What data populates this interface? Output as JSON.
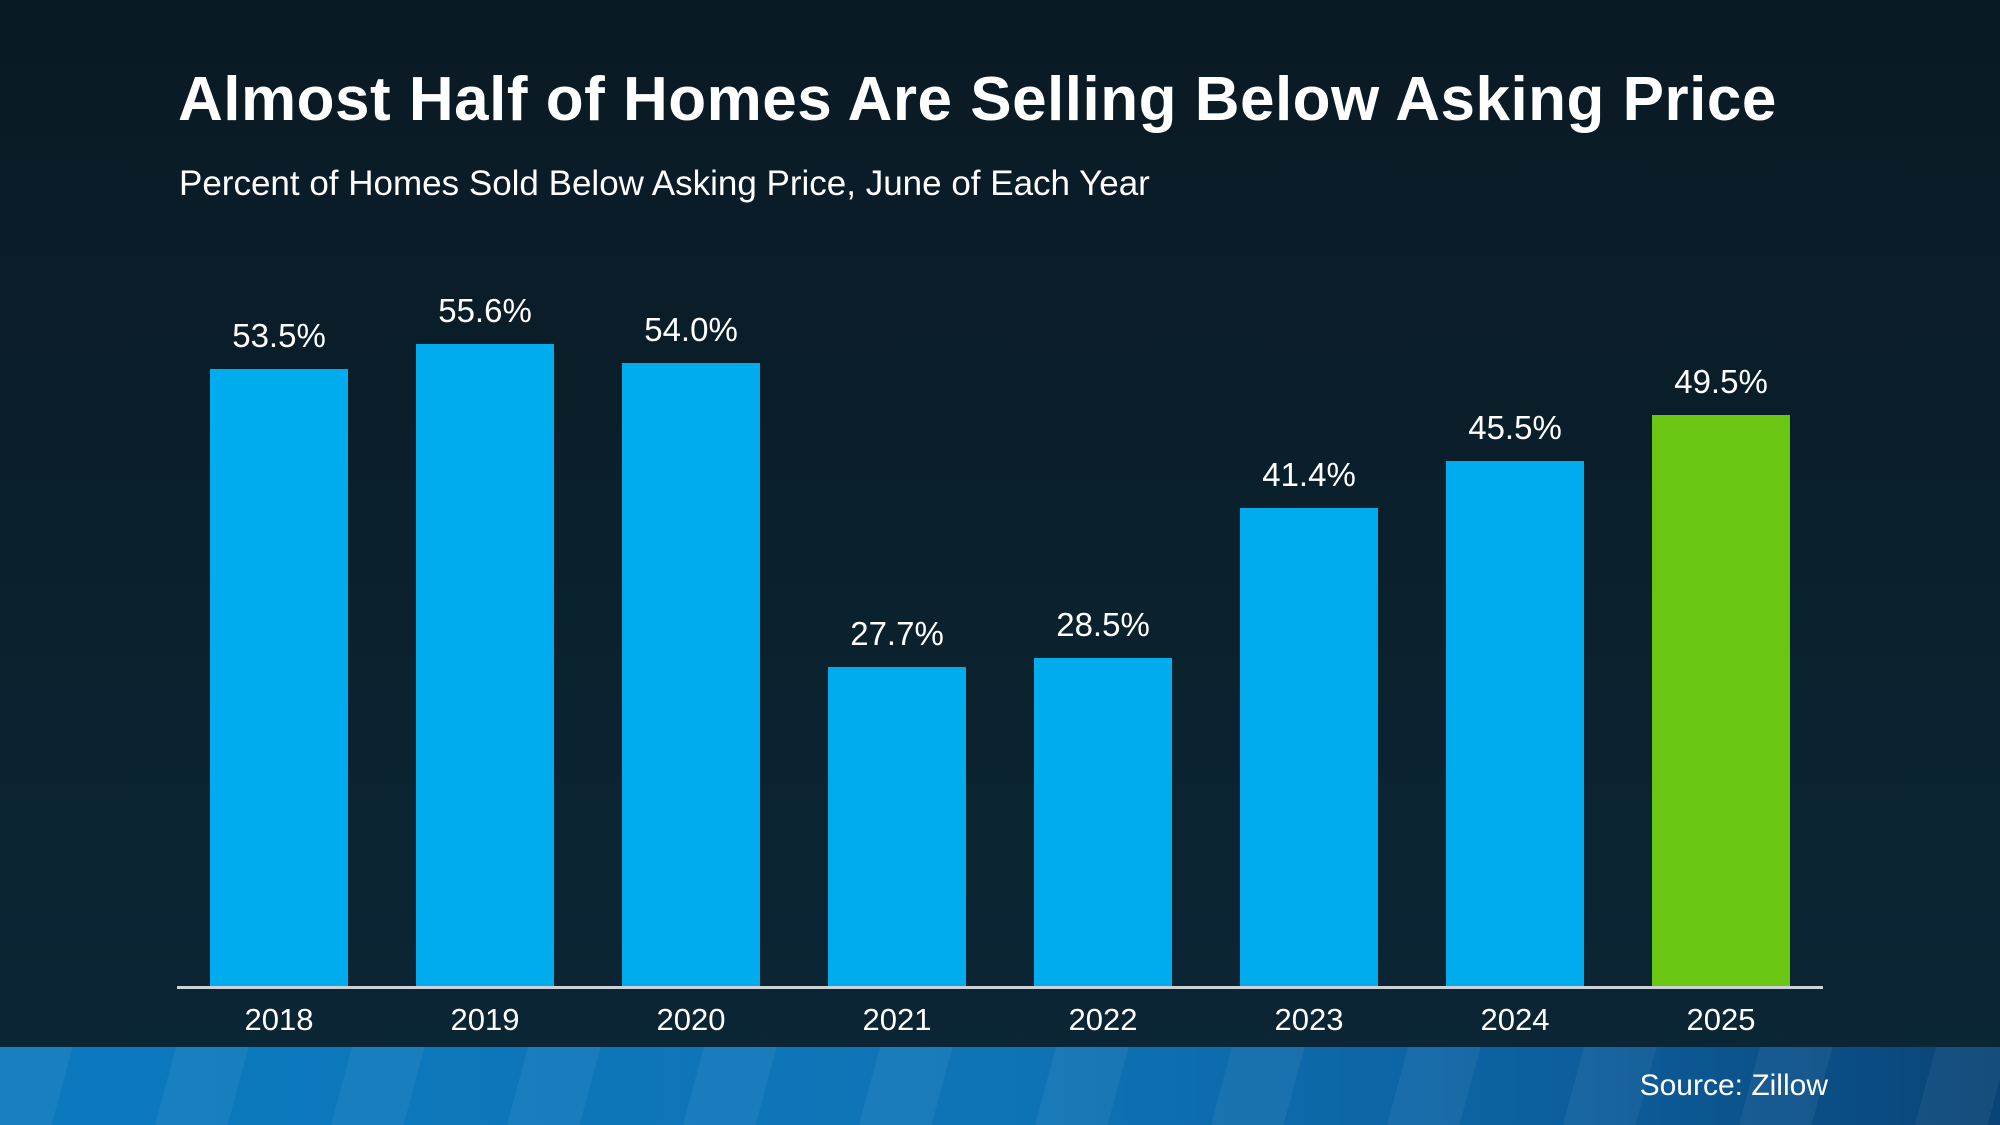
{
  "slide": {
    "title": "Almost Half of Homes Are Selling Below Asking Price",
    "subtitle": "Percent of Homes Sold Below Asking Price, June of Each Year",
    "source": "Source: Zillow"
  },
  "chart_data": {
    "type": "bar",
    "title": "Almost Half of Homes Are Selling Below Asking Price",
    "subtitle": "Percent of Homes Sold Below Asking Price, June of Each Year",
    "categories": [
      "2018",
      "2019",
      "2020",
      "2021",
      "2022",
      "2023",
      "2024",
      "2025"
    ],
    "values": [
      53.5,
      55.6,
      54.0,
      27.7,
      28.5,
      41.4,
      45.5,
      49.5
    ],
    "value_labels": [
      "53.5%",
      "55.6%",
      "54.0%",
      "27.7%",
      "28.5%",
      "41.4%",
      "45.5%",
      "49.5%"
    ],
    "xlabel": "",
    "ylabel": "Percent of homes sold below asking price",
    "ylim": [
      0,
      60
    ],
    "grid": false,
    "legend": false,
    "data_labels": true,
    "highlight_index": 7,
    "colors": {
      "bar_default": "#00abee",
      "bar_highlight": "#6bc513",
      "axis_line": "#cbd2d8",
      "label_text": "#ffffff",
      "background_top": "#0a1a24",
      "background_bottom": "#0b2636",
      "footer_left": "#0c79be",
      "footer_right": "#0a4375"
    },
    "source": "Source: Zillow"
  }
}
